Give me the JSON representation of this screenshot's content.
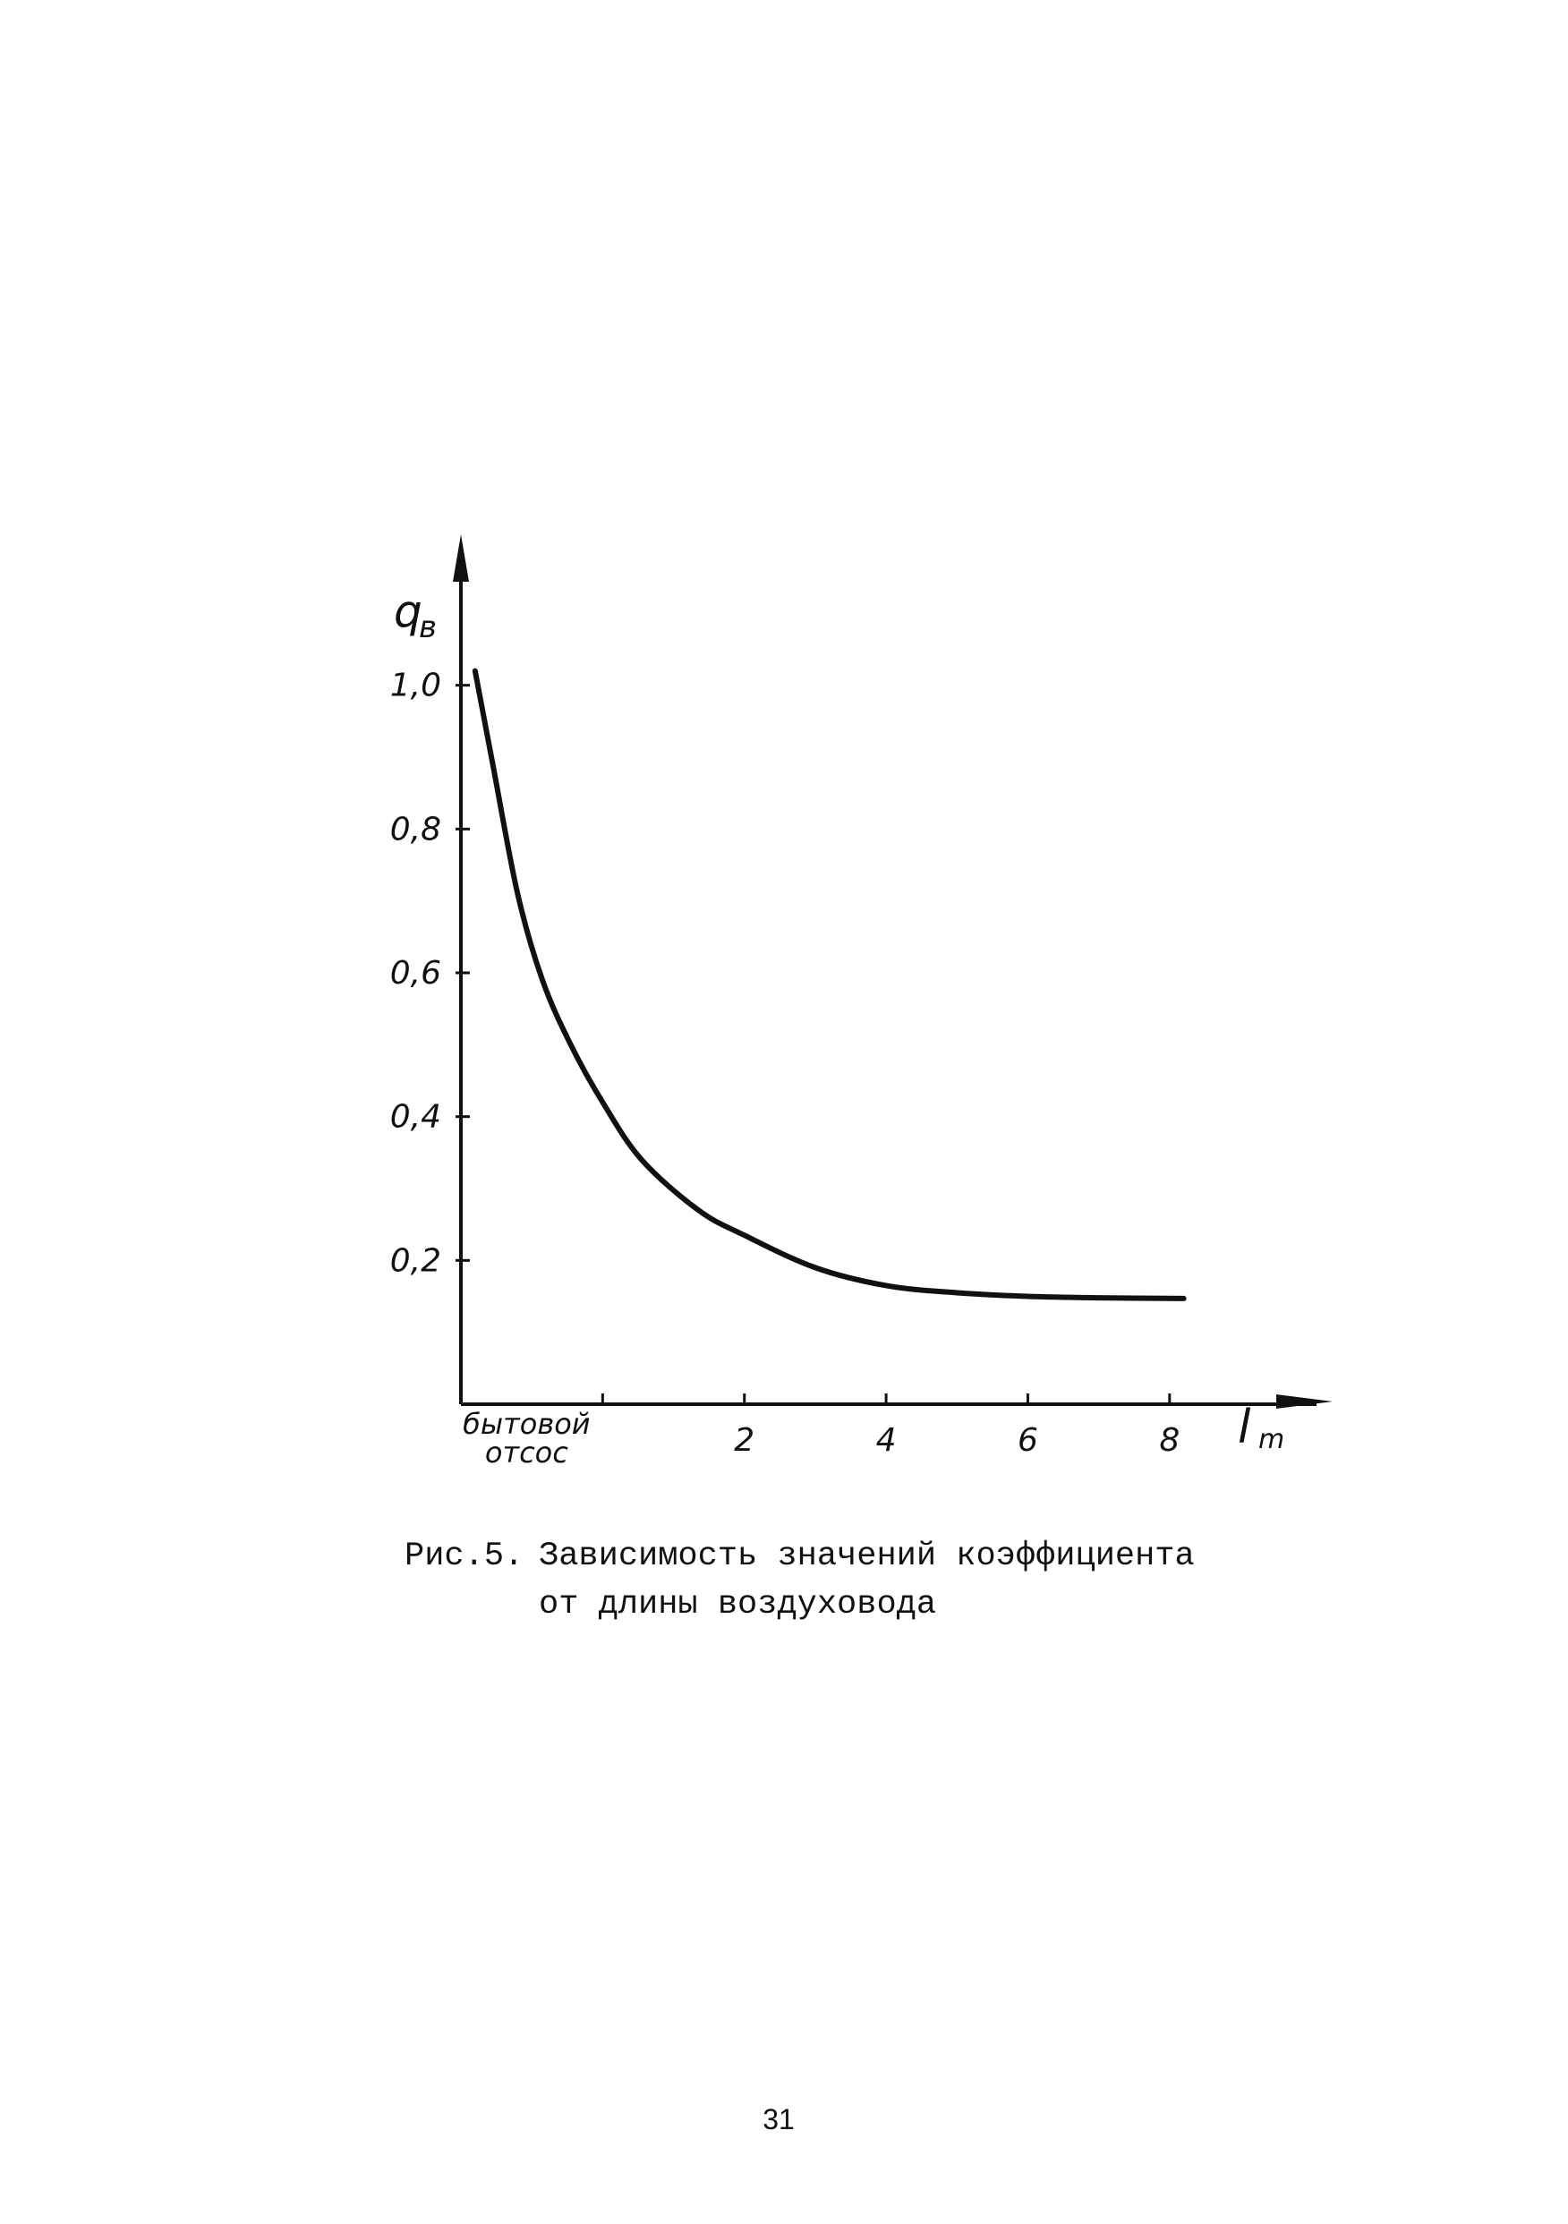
{
  "chart_data": {
    "type": "line",
    "y_label": {
      "main": "q",
      "sub": "в"
    },
    "x_label": {
      "main": "l",
      "sub": "m"
    },
    "x": [
      -1.8,
      -1.55,
      -1.2,
      -0.85,
      -0.45,
      0,
      0.55,
      1.35,
      2,
      3,
      4,
      5,
      6,
      7,
      8.2
    ],
    "values": [
      1.02,
      0.89,
      0.71,
      0.59,
      0.5,
      0.42,
      0.34,
      0.27,
      0.235,
      0.19,
      0.165,
      0.155,
      0.15,
      0.148,
      0.147
    ],
    "color": "#111111",
    "xlim": [
      -2,
      10.2
    ],
    "ylim": [
      0,
      1.2
    ],
    "xticks": [
      {
        "value": 0,
        "label": "бытовой отсос"
      },
      2,
      4,
      6,
      8
    ],
    "yticks": [
      {
        "value": 0.2,
        "label": "0,2"
      },
      {
        "value": 0.4,
        "label": "0,4"
      },
      {
        "value": 0.6,
        "label": "0,6"
      },
      {
        "value": 0.8,
        "label": "0,8"
      },
      {
        "value": 1.0,
        "label": "1,0"
      }
    ],
    "grid": false
  },
  "caption": {
    "label": "Рис.5.",
    "lines": [
      "Зависимость значений коэффициента",
      "от длины воздуховода"
    ]
  },
  "page_number": "31"
}
